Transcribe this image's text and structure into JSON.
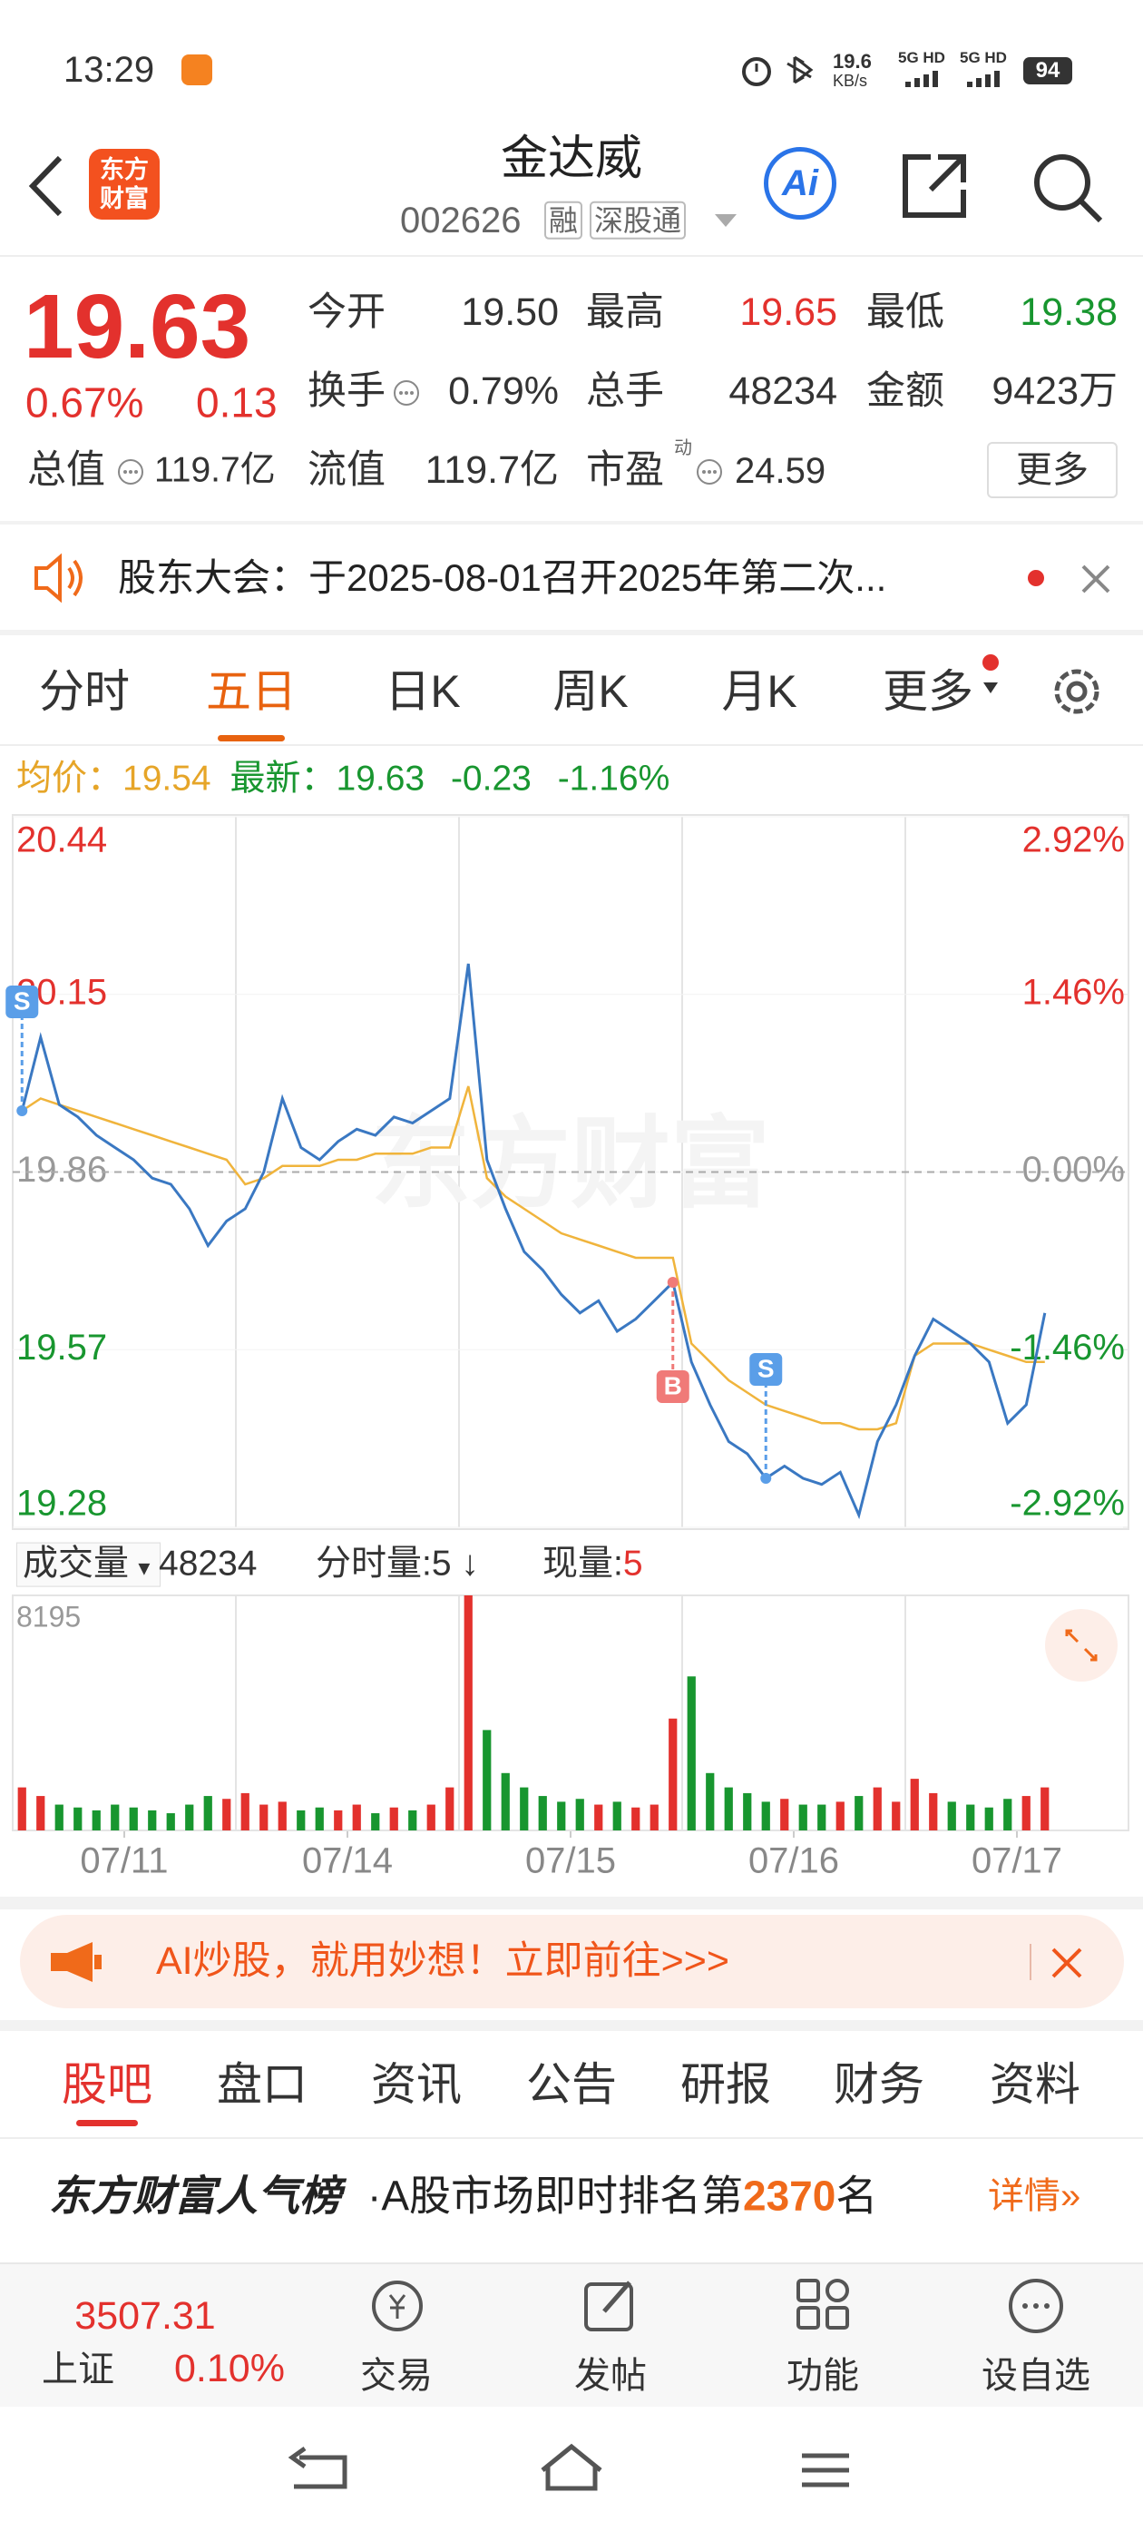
{
  "status_bar": {
    "time": "13:29",
    "speed": "19.6",
    "speed_unit": "KB/s",
    "signal_1": "5G HD",
    "signal_2": "5G HD",
    "battery": "94"
  },
  "header": {
    "brand": "东方财富",
    "name": "金达威",
    "code": "002626",
    "tags": [
      "融",
      "深股通"
    ],
    "ai": "Ai"
  },
  "quote": {
    "price": "19.63",
    "change_pct": "0.67%",
    "change": "0.13",
    "fields": [
      {
        "label": "今开",
        "value": "19.50"
      },
      {
        "label": "最高",
        "value": "19.65"
      },
      {
        "label": "最低",
        "value": "19.38"
      },
      {
        "label": "换手",
        "value": "0.79%"
      },
      {
        "label": "总手",
        "value": "48234"
      },
      {
        "label": "金额",
        "value": "9423万"
      },
      {
        "label": "总值",
        "value": "119.7亿"
      },
      {
        "label": "流值",
        "value": "119.7亿"
      },
      {
        "label": "市盈",
        "sup": "动",
        "value": "24.59"
      }
    ],
    "more": "更多"
  },
  "notice": {
    "text": "股东大会：于2025-08-01召开2025年第二次..."
  },
  "tabs": [
    "分时",
    "五日",
    "日K",
    "周K",
    "月K",
    "更多"
  ],
  "chart_data": [
    {
      "type": "line",
      "watermark": "东方财富",
      "change": "-0.23",
      "change_pct": "-1.16%",
      "xlim": [
        0,
        60
      ],
      "x": [
        0.5,
        1.5,
        2.5,
        3.5,
        4.5,
        5.5,
        6.5,
        7.5,
        8.5,
        9.5,
        10.5,
        11.5,
        12.5,
        13.5,
        14.5,
        15.5,
        16.5,
        17.5,
        18.5,
        19.5,
        20.5,
        21.5,
        22.5,
        23.5,
        24.5,
        25.5,
        26.5,
        27.5,
        28.5,
        29.5,
        30.5,
        31.5,
        32.5,
        33.5,
        34.5,
        35.5,
        36.5,
        37.5,
        38.5,
        39.5,
        40.5,
        41.5,
        42.5,
        43.5,
        44.5,
        45.5,
        46.5,
        47.5,
        48.5,
        49.5,
        50.5,
        51.5,
        52.5,
        53.5,
        54.5,
        55.5
      ],
      "xticks": [
        {
          "value": 6,
          "label": "07/11"
        },
        {
          "value": 18,
          "label": "07/14"
        },
        {
          "value": 30,
          "label": "07/15"
        },
        {
          "value": 42,
          "label": "07/16"
        },
        {
          "value": 54,
          "label": "07/17"
        }
      ],
      "ylim": [
        19.28,
        20.44
      ],
      "yticks": [
        20.44,
        20.15,
        19.86,
        19.57,
        19.28
      ],
      "y2lim": [
        -2.92,
        2.92
      ],
      "y2ticks": [
        {
          "value": 2.92,
          "label": "2.92%"
        },
        {
          "value": 1.46,
          "label": "1.46%"
        },
        {
          "value": 0,
          "label": "0.00%"
        },
        {
          "value": -1.46,
          "label": "-1.46%"
        },
        {
          "value": -2.92,
          "label": "-2.92%"
        }
      ],
      "grid": true,
      "up_color": "#e3312d",
      "down_color": "#18962f",
      "flat_color": "#999999",
      "series": [
        {
          "name": "均价：",
          "label_value": "19.54",
          "color": "#f0b43c",
          "values": [
            19.96,
            19.98,
            19.97,
            19.96,
            19.95,
            19.94,
            19.93,
            19.92,
            19.91,
            19.9,
            19.89,
            19.88,
            19.84,
            19.85,
            19.87,
            19.87,
            19.87,
            19.88,
            19.88,
            19.89,
            19.89,
            19.89,
            19.9,
            19.9,
            20.0,
            19.85,
            19.82,
            19.8,
            19.78,
            19.76,
            19.75,
            19.74,
            19.73,
            19.72,
            19.72,
            19.72,
            19.58,
            19.55,
            19.52,
            19.5,
            19.48,
            19.47,
            19.46,
            19.45,
            19.45,
            19.44,
            19.44,
            19.45,
            19.56,
            19.58,
            19.58,
            19.58,
            19.57,
            19.56,
            19.55,
            19.55
          ]
        },
        {
          "name": "最新：",
          "label_value": "19.63",
          "color": "#3a78c2",
          "values": [
            19.96,
            20.08,
            19.97,
            19.95,
            19.92,
            19.9,
            19.88,
            19.85,
            19.84,
            19.8,
            19.74,
            19.78,
            19.8,
            19.86,
            19.98,
            19.9,
            19.88,
            19.91,
            19.93,
            19.92,
            19.95,
            19.94,
            19.96,
            19.98,
            20.2,
            19.88,
            19.8,
            19.73,
            19.7,
            19.66,
            19.63,
            19.65,
            19.6,
            19.62,
            19.65,
            19.68,
            19.55,
            19.48,
            19.42,
            19.4,
            19.36,
            19.38,
            19.36,
            19.35,
            19.37,
            19.3,
            19.42,
            19.48,
            19.56,
            19.62,
            19.6,
            19.58,
            19.55,
            19.45,
            19.48,
            19.63
          ]
        }
      ],
      "annotations": [
        {
          "label": "S",
          "x": 0.5,
          "value": 19.96
        },
        {
          "label": "B",
          "x": 35.5,
          "value": 19.68
        },
        {
          "label": "S",
          "x": 40.5,
          "value": 19.36
        }
      ]
    },
    {
      "type": "bar",
      "name": "成交量",
      "total": "48234",
      "interval_label": "分时量:5",
      "arrow": "↓",
      "current_label": "现量:",
      "current": "5",
      "xlim": [
        0,
        60
      ],
      "x": [
        0.5,
        1.5,
        2.5,
        3.5,
        4.5,
        5.5,
        6.5,
        7.5,
        8.5,
        9.5,
        10.5,
        11.5,
        12.5,
        13.5,
        14.5,
        15.5,
        16.5,
        17.5,
        18.5,
        19.5,
        20.5,
        21.5,
        22.5,
        23.5,
        24.5,
        25.5,
        26.5,
        27.5,
        28.5,
        29.5,
        30.5,
        31.5,
        32.5,
        33.5,
        34.5,
        35.5,
        36.5,
        37.5,
        38.5,
        39.5,
        40.5,
        41.5,
        42.5,
        43.5,
        44.5,
        45.5,
        46.5,
        47.5,
        48.5,
        49.5,
        50.5,
        51.5,
        52.5,
        53.5,
        54.5,
        55.5
      ],
      "values": [
        1500,
        1200,
        900,
        800,
        700,
        900,
        800,
        700,
        600,
        900,
        1200,
        1100,
        1300,
        900,
        1000,
        700,
        800,
        700,
        900,
        600,
        800,
        700,
        900,
        1500,
        8195,
        3500,
        2000,
        1500,
        1200,
        1000,
        1100,
        900,
        1000,
        800,
        900,
        3900,
        5370,
        2000,
        1500,
        1300,
        1000,
        1100,
        900,
        900,
        1000,
        1200,
        1500,
        1000,
        1800,
        1300,
        1000,
        900,
        800,
        1100,
        1200,
        1500
      ],
      "ylim": [
        0,
        8195
      ],
      "yticks": [
        8195
      ]
    }
  ],
  "banner": {
    "text": "AI炒股，就用妙想！立即前往>>>"
  },
  "sections": [
    "股吧",
    "盘口",
    "资讯",
    "公告",
    "研报",
    "财务",
    "资料"
  ],
  "ranking": {
    "title": "东方财富人气榜",
    "text": "·A股市场即时排名第",
    "rank": "2370",
    "suffix": "名",
    "link": "详情»"
  },
  "bottom_bar": {
    "index_value": "3507.31",
    "index_name": "上证",
    "index_change": "0.10%",
    "items": [
      "交易",
      "发帖",
      "功能",
      "设自选"
    ]
  }
}
